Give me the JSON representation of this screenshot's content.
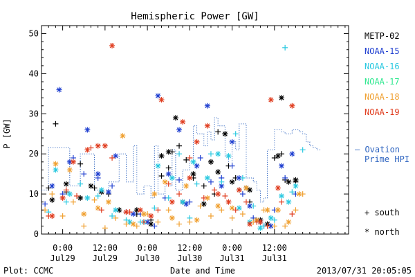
{
  "footer": {
    "left": "Plot: CCMC",
    "center": "Date and Time",
    "right": "2013/07/31  20:05:05"
  },
  "chart_data": {
    "type": "scatter",
    "title": "Hemispheric Power [GW]",
    "ylabel": "P [GW]",
    "xlabel": "Date and Time",
    "ylim": [
      0,
      52
    ],
    "xlim_hours": [
      -6,
      81
    ],
    "grid": false,
    "y_ticks": [
      "0",
      "10",
      "20",
      "30",
      "40",
      "50"
    ],
    "x_ticks": [
      {
        "hours": 0,
        "time": "0:00",
        "date": "Jul29"
      },
      {
        "hours": 12,
        "time": "12:00",
        "date": "Jul29"
      },
      {
        "hours": 24,
        "time": "0:00",
        "date": "Jul30"
      },
      {
        "hours": 36,
        "time": "12:00",
        "date": "Jul30"
      },
      {
        "hours": 48,
        "time": "0:00",
        "date": "Jul31"
      },
      {
        "hours": 60,
        "time": "12:00",
        "date": "Jul31"
      }
    ],
    "legend": {
      "placement": "right"
    },
    "marker_legend": [
      {
        "symbol": "+",
        "label": "south"
      },
      {
        "symbol": "*",
        "label": "north"
      }
    ],
    "ovation": {
      "name": "— Ovation Prime HPI",
      "color": "#2e64c0",
      "steps": [
        [
          -6,
          11
        ],
        [
          -4,
          21.5
        ],
        [
          2,
          12
        ],
        [
          5,
          20
        ],
        [
          9,
          11
        ],
        [
          13,
          13
        ],
        [
          16,
          20
        ],
        [
          18,
          13
        ],
        [
          20,
          22
        ],
        [
          21,
          10
        ],
        [
          23,
          12
        ],
        [
          25,
          9
        ],
        [
          26,
          22
        ],
        [
          27,
          10
        ],
        [
          29,
          12
        ],
        [
          31,
          21
        ],
        [
          32,
          11
        ],
        [
          34,
          16
        ],
        [
          36,
          19
        ],
        [
          37,
          27
        ],
        [
          38,
          25
        ],
        [
          40,
          22
        ],
        [
          41,
          25.5
        ],
        [
          42,
          23.5
        ],
        [
          43,
          29
        ],
        [
          44,
          27
        ],
        [
          46,
          19.5
        ],
        [
          47,
          17
        ],
        [
          48,
          23
        ],
        [
          49,
          21
        ],
        [
          50,
          27.5
        ],
        [
          52,
          14
        ],
        [
          54,
          13
        ],
        [
          55,
          11
        ],
        [
          56,
          8
        ],
        [
          57,
          9
        ],
        [
          58,
          21
        ],
        [
          60,
          26
        ],
        [
          62,
          25.5
        ],
        [
          63,
          25
        ],
        [
          65,
          26
        ],
        [
          67,
          25.5
        ],
        [
          68,
          25
        ],
        [
          69,
          23
        ],
        [
          70,
          22
        ],
        [
          71,
          21.5
        ],
        [
          72,
          21
        ]
      ]
    },
    "series": [
      {
        "name": "METP-02",
        "color": "#000000",
        "south": [
          [
            -4,
            11.5
          ],
          [
            -2,
            27.5
          ],
          [
            1,
            10.5
          ],
          [
            5,
            17.5
          ],
          [
            9,
            11.5
          ],
          [
            13,
            10
          ],
          [
            21,
            5
          ],
          [
            25,
            3.5
          ],
          [
            28,
            14.5
          ],
          [
            30,
            16.5
          ],
          [
            31,
            20.5
          ],
          [
            33,
            22
          ],
          [
            35,
            18.5
          ],
          [
            37,
            14
          ],
          [
            40,
            12
          ],
          [
            43,
            10
          ],
          [
            44,
            25.5
          ],
          [
            46,
            25
          ],
          [
            47,
            17
          ],
          [
            49,
            14
          ],
          [
            50,
            11
          ],
          [
            53,
            8
          ],
          [
            56,
            3
          ],
          [
            58,
            2
          ],
          [
            60,
            19
          ],
          [
            62,
            20
          ],
          [
            63,
            13.5
          ],
          [
            66,
            13
          ]
        ],
        "north": [
          [
            -3,
            8.5
          ],
          [
            1,
            12.5
          ],
          [
            5,
            9
          ],
          [
            8,
            12
          ],
          [
            11,
            10.5
          ],
          [
            16,
            6
          ],
          [
            21,
            6
          ],
          [
            25,
            2.5
          ],
          [
            28,
            19.5
          ],
          [
            30,
            20.5
          ],
          [
            32,
            29
          ],
          [
            34,
            8
          ],
          [
            37,
            15
          ],
          [
            40,
            7.5
          ],
          [
            42,
            18
          ],
          [
            44,
            15.5
          ],
          [
            46,
            25
          ],
          [
            48,
            13
          ],
          [
            52,
            11.5
          ],
          [
            53,
            11
          ],
          [
            55,
            3.5
          ],
          [
            56,
            3.5
          ],
          [
            58,
            2.5
          ],
          [
            61,
            19.5
          ],
          [
            62,
            34
          ],
          [
            64,
            13
          ],
          [
            66,
            13.5
          ]
        ]
      },
      {
        "name": "NOAA-15",
        "color": "#1f3fd0",
        "south": [
          [
            -5,
            7.5
          ],
          [
            0,
            10
          ],
          [
            3,
            19
          ],
          [
            6,
            15
          ],
          [
            10,
            14
          ],
          [
            14,
            12
          ],
          [
            18,
            5.5
          ],
          [
            22,
            5
          ],
          [
            26,
            2
          ],
          [
            29,
            9
          ],
          [
            33,
            13.5
          ],
          [
            36,
            8
          ],
          [
            39,
            19
          ],
          [
            42,
            13
          ],
          [
            45,
            14
          ],
          [
            48,
            17
          ],
          [
            51,
            10
          ],
          [
            54,
            4
          ],
          [
            57,
            2
          ],
          [
            60,
            6
          ],
          [
            63,
            14
          ],
          [
            66,
            10
          ]
        ],
        "north": [
          [
            -3,
            12
          ],
          [
            -1,
            36
          ],
          [
            2,
            18
          ],
          [
            7,
            26
          ],
          [
            10,
            15
          ],
          [
            13,
            10.5
          ],
          [
            15,
            19.5
          ],
          [
            20,
            5
          ],
          [
            24,
            3
          ],
          [
            27,
            34.5
          ],
          [
            30,
            15
          ],
          [
            33,
            26
          ],
          [
            35,
            7.5
          ],
          [
            38,
            17
          ],
          [
            41,
            32
          ],
          [
            45,
            12
          ],
          [
            48,
            23
          ],
          [
            50,
            14
          ],
          [
            53,
            7
          ],
          [
            56,
            3
          ],
          [
            59,
            2
          ],
          [
            62,
            17
          ],
          [
            65,
            20
          ]
        ]
      },
      {
        "name": "NOAA-16",
        "color": "#28c8e0",
        "south": [
          [
            -4,
            5.5
          ],
          [
            1,
            8
          ],
          [
            5,
            12.5
          ],
          [
            10,
            9.5
          ],
          [
            14,
            4.5
          ],
          [
            18,
            3.5
          ],
          [
            22,
            3
          ],
          [
            26,
            6.5
          ],
          [
            30,
            9
          ],
          [
            33,
            20
          ],
          [
            36,
            4
          ],
          [
            38,
            12.5
          ],
          [
            42,
            20
          ],
          [
            45,
            13
          ],
          [
            49,
            25
          ],
          [
            51,
            14
          ],
          [
            54,
            7
          ],
          [
            57,
            2
          ],
          [
            60,
            3.5
          ],
          [
            63,
            46.5
          ],
          [
            65,
            10.5
          ],
          [
            68,
            21
          ]
        ],
        "north": [
          [
            -2,
            16
          ],
          [
            2,
            10
          ],
          [
            7,
            9
          ],
          [
            11,
            11
          ],
          [
            15,
            6
          ],
          [
            19,
            3
          ],
          [
            23,
            3
          ],
          [
            27,
            17
          ],
          [
            31,
            14
          ],
          [
            34,
            8
          ],
          [
            37,
            18
          ],
          [
            41,
            14
          ],
          [
            44,
            20
          ],
          [
            47,
            19.5
          ],
          [
            50,
            6.5
          ],
          [
            53,
            3
          ],
          [
            56,
            1.5
          ],
          [
            59,
            4
          ],
          [
            62,
            9.5
          ],
          [
            64,
            8
          ],
          [
            66,
            12
          ]
        ]
      },
      {
        "name": "NOAA-17",
        "color": "#30e890",
        "south": [],
        "north": []
      },
      {
        "name": "NOAA-18",
        "color": "#f0a030",
        "south": [
          [
            -5,
            6
          ],
          [
            -3,
            10
          ],
          [
            0,
            4.5
          ],
          [
            3,
            8
          ],
          [
            6,
            2
          ],
          [
            9,
            8.5
          ],
          [
            12,
            1.5
          ],
          [
            15,
            4
          ],
          [
            18,
            2.5
          ],
          [
            21,
            2
          ],
          [
            24,
            5
          ],
          [
            27,
            3
          ],
          [
            30,
            6
          ],
          [
            33,
            2.5
          ],
          [
            36,
            3
          ],
          [
            39,
            7
          ],
          [
            42,
            4.5
          ],
          [
            45,
            6
          ],
          [
            48,
            4
          ],
          [
            51,
            5
          ],
          [
            54,
            3
          ],
          [
            57,
            6
          ],
          [
            60,
            2
          ],
          [
            63,
            2
          ],
          [
            66,
            6
          ],
          [
            68,
            10
          ]
        ],
        "north": [
          [
            -2,
            17.5
          ],
          [
            2,
            16
          ],
          [
            6,
            5
          ],
          [
            10,
            6.5
          ],
          [
            13,
            8
          ],
          [
            17,
            24.5
          ],
          [
            20,
            2.5
          ],
          [
            23,
            5
          ],
          [
            26,
            10
          ],
          [
            29,
            13
          ],
          [
            31,
            4
          ],
          [
            35,
            12
          ],
          [
            38,
            3.5
          ],
          [
            41,
            9
          ],
          [
            44,
            7
          ],
          [
            48,
            6.5
          ],
          [
            52,
            11.5
          ],
          [
            55,
            3.5
          ],
          [
            58,
            6
          ],
          [
            61,
            6
          ],
          [
            64,
            3
          ],
          [
            67,
            10
          ]
        ]
      },
      {
        "name": "NOAA-19",
        "color": "#e03c1e",
        "south": [
          [
            -4,
            4.5
          ],
          [
            1,
            11
          ],
          [
            4,
            9.5
          ],
          [
            8,
            21.5
          ],
          [
            11,
            6
          ],
          [
            14,
            19
          ],
          [
            19,
            5.5
          ],
          [
            23,
            3
          ],
          [
            27,
            6
          ],
          [
            30,
            12.5
          ],
          [
            33,
            10
          ],
          [
            36,
            19
          ],
          [
            40,
            9
          ],
          [
            43,
            11
          ],
          [
            46,
            9.5
          ],
          [
            49,
            6
          ],
          [
            52,
            8
          ],
          [
            55,
            3
          ],
          [
            58,
            2
          ],
          [
            62,
            8
          ],
          [
            65,
            5
          ]
        ],
        "north": [
          [
            -3,
            4.5
          ],
          [
            0,
            9
          ],
          [
            3,
            18
          ],
          [
            7,
            21
          ],
          [
            10,
            22
          ],
          [
            12,
            22
          ],
          [
            14,
            47
          ],
          [
            18,
            5.5
          ],
          [
            22,
            6
          ],
          [
            25,
            4.5
          ],
          [
            28,
            33.5
          ],
          [
            31,
            8
          ],
          [
            34,
            28
          ],
          [
            36,
            14
          ],
          [
            38,
            23
          ],
          [
            41,
            27
          ],
          [
            44,
            10
          ],
          [
            47,
            8
          ],
          [
            50,
            11
          ],
          [
            53,
            2.5
          ],
          [
            56,
            3
          ],
          [
            59,
            33.5
          ],
          [
            61,
            11.5
          ],
          [
            65,
            32
          ]
        ]
      }
    ]
  }
}
